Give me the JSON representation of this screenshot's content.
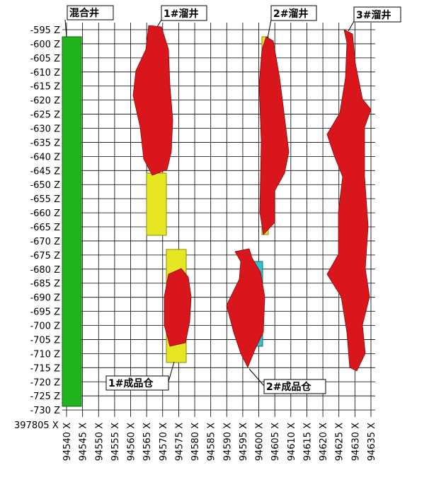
{
  "y_axis": {
    "labels": [
      "-595 Z",
      "-600 Z",
      "-605 Z",
      "-610 Z",
      "-615 Z",
      "-620 Z",
      "-625 Z",
      "-630 Z",
      "-635 Z",
      "-640 Z",
      "-645 Z",
      "-650 Z",
      "-655 Z",
      "-660 Z",
      "-665 Z",
      "-670 Z",
      "-675 Z",
      "-680 Z",
      "-685 Z",
      "-690 Z",
      "-695 Z",
      "-700 Z",
      "-705 Z",
      "-710 Z",
      "-715 Z",
      "-720 Z",
      "-725 Z",
      "-730 Z"
    ]
  },
  "x_axis": {
    "labels": [
      "94540 X",
      "94545 X",
      "94550 X",
      "94555 X",
      "94560 X",
      "94565 X",
      "94570 X",
      "94575 X",
      "94580 X",
      "94585 X",
      "94590 X",
      "94595 X",
      "94600 X",
      "94605 X",
      "94610 X",
      "94615 X",
      "94620 X",
      "94625 X",
      "94630 X",
      "94635 X"
    ]
  },
  "corner_label": "397805 X",
  "callouts": {
    "mixed_shaft": "混合井",
    "ore_pass_1": "1#溜井",
    "ore_pass_2": "2#溜井",
    "ore_pass_3": "3#溜井",
    "bin_1": "1#成品仓",
    "bin_2": "2#成品仓"
  }
}
